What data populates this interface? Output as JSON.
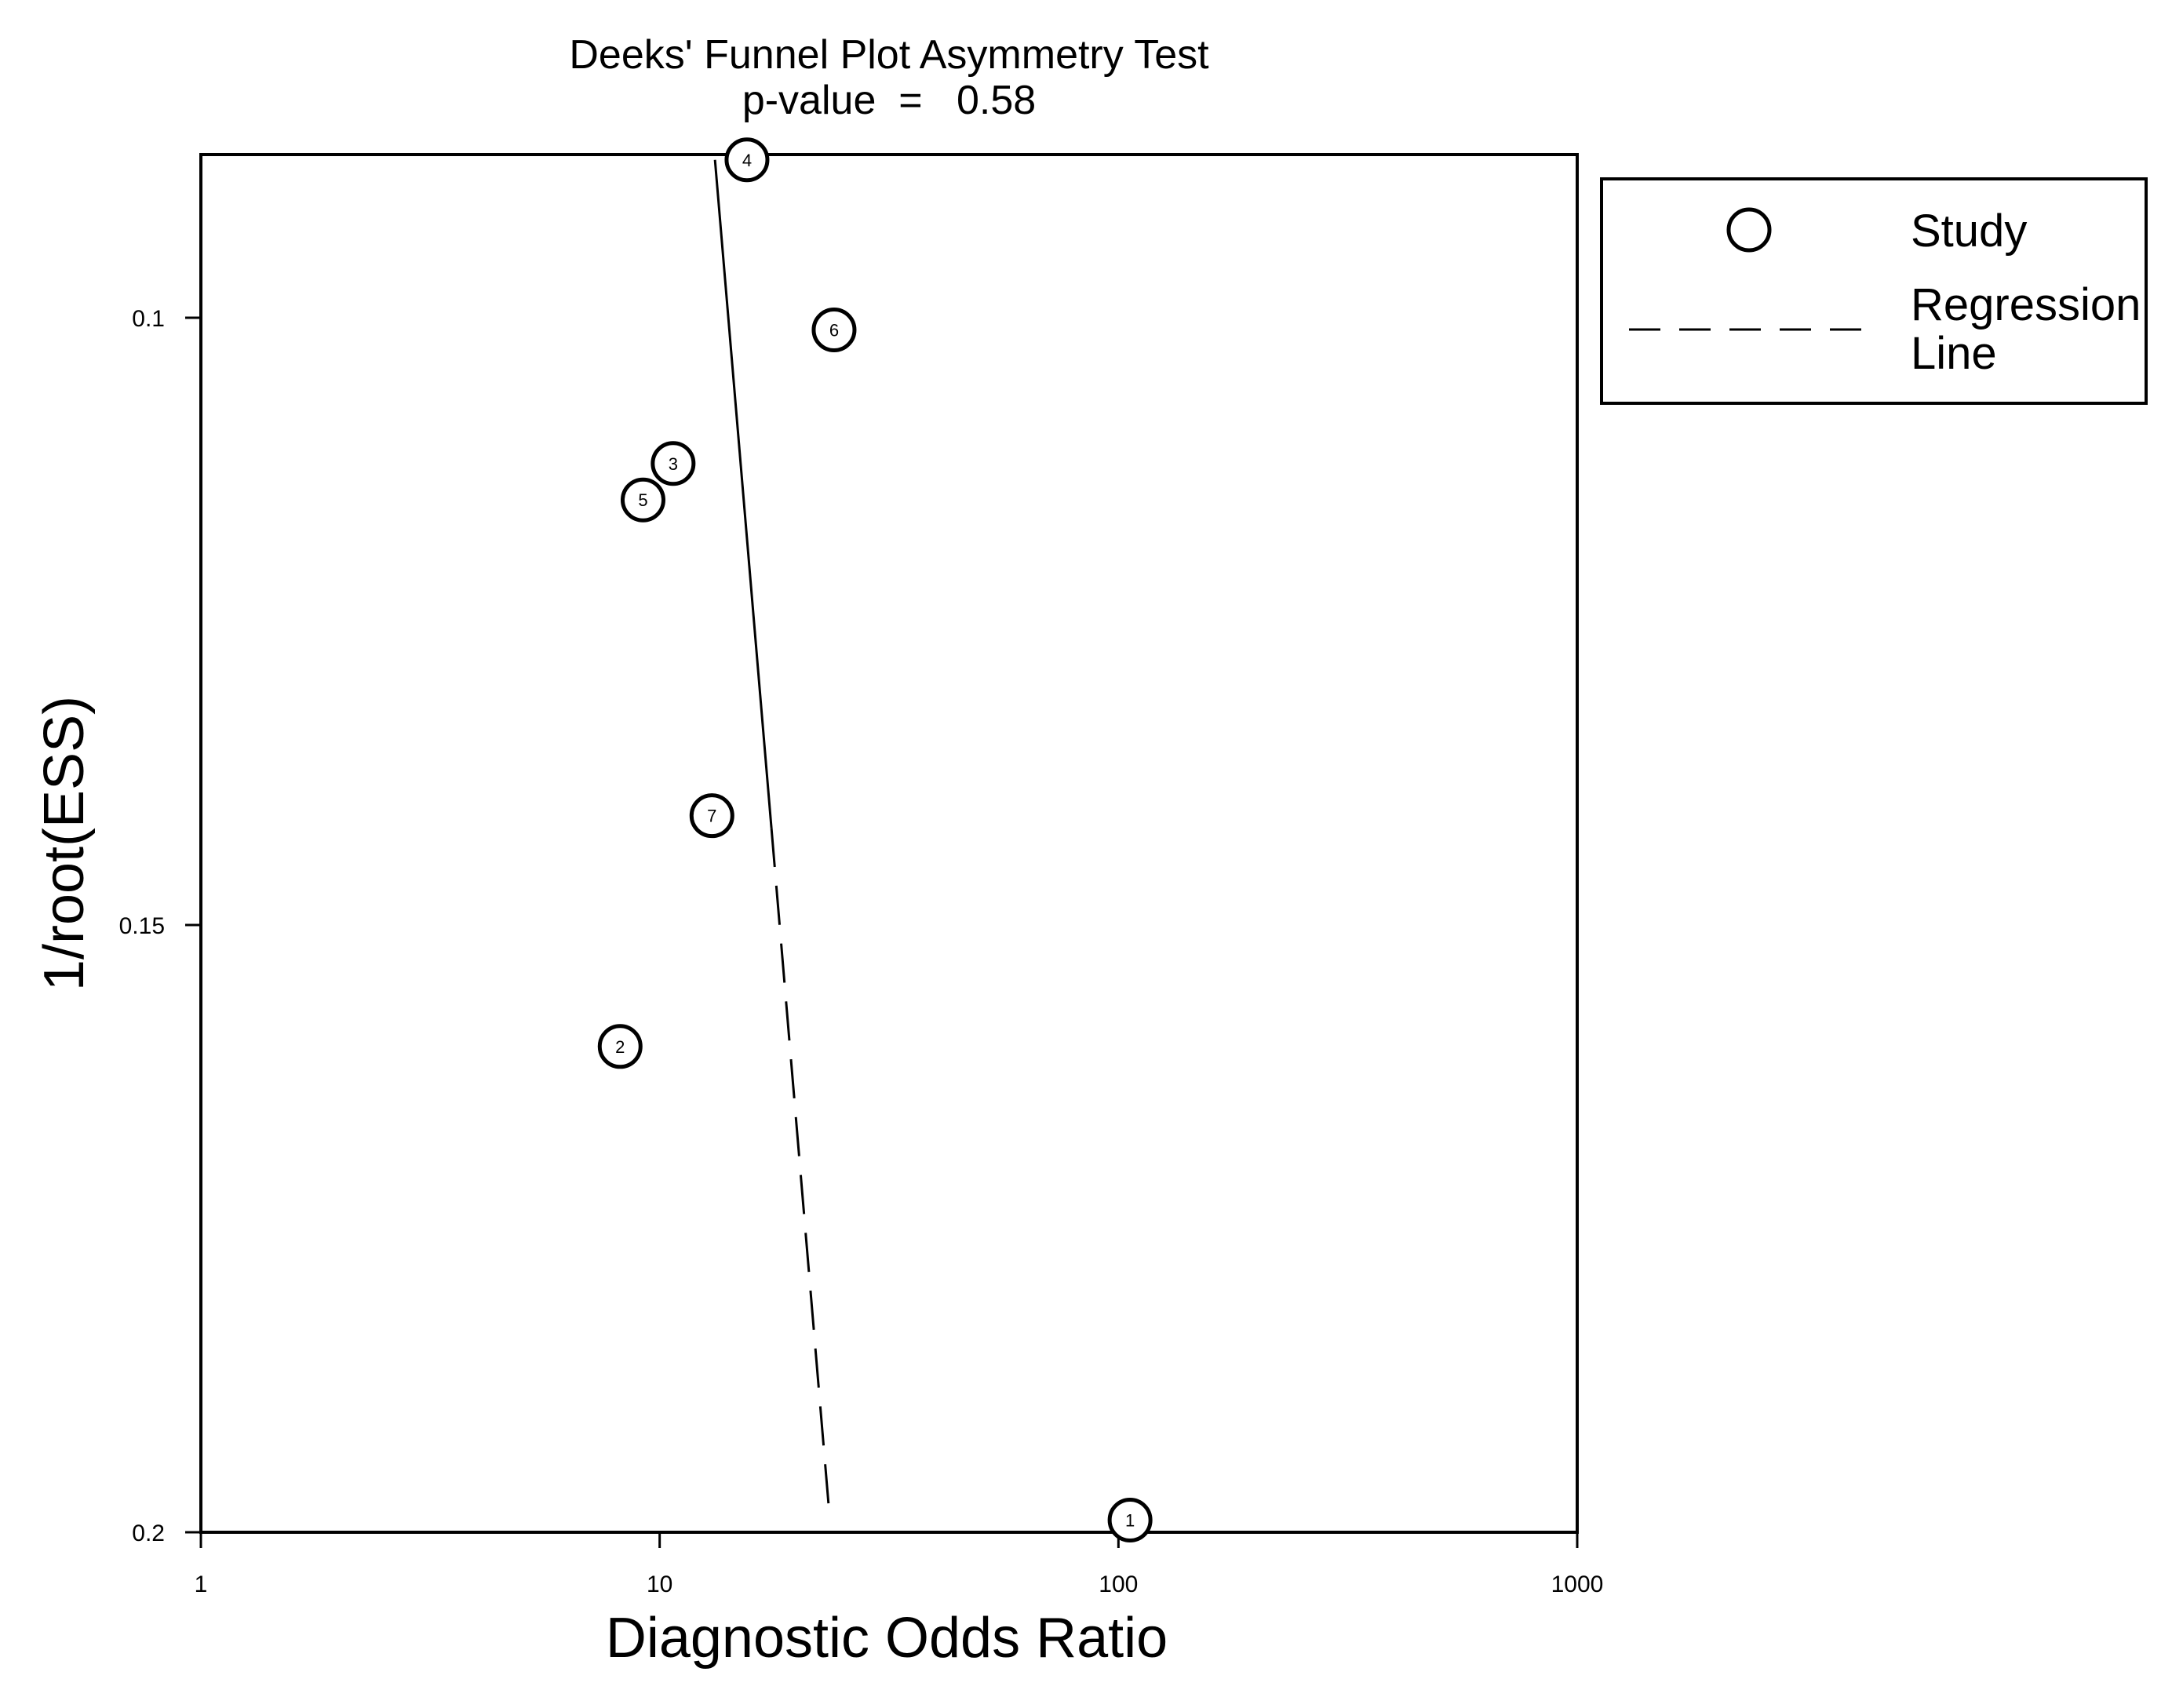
{
  "chart_data": {
    "type": "scatter",
    "title": "Deeks' Funnel Plot Asymmetry Test",
    "subtitle": "p-value  =   0.58",
    "xlabel": "Diagnostic Odds Ratio",
    "ylabel": "1/root(ESS)",
    "x_scale": "log",
    "xlim": [
      1,
      1000
    ],
    "ylim": [
      0.2,
      0.087
    ],
    "y_reversed": true,
    "x_ticks": [
      "1",
      "10",
      "100",
      "1000"
    ],
    "x_tick_values": [
      1,
      10,
      100,
      1000
    ],
    "y_ticks": [
      "0.1",
      "0.15",
      "0.2"
    ],
    "y_tick_values": [
      0.1,
      0.15,
      0.2
    ],
    "series": [
      {
        "name": "Study",
        "points": [
          {
            "label": "1",
            "x": 106,
            "y": 0.199
          },
          {
            "label": "2",
            "x": 8.2,
            "y": 0.16
          },
          {
            "label": "3",
            "x": 10.7,
            "y": 0.112
          },
          {
            "label": "4",
            "x": 15.5,
            "y": 0.087
          },
          {
            "label": "5",
            "x": 9.2,
            "y": 0.115
          },
          {
            "label": "6",
            "x": 24,
            "y": 0.101
          },
          {
            "label": "7",
            "x": 13,
            "y": 0.141
          }
        ]
      },
      {
        "name": "Regression Line",
        "line": [
          {
            "x": 13.2,
            "y": 0.087
          },
          {
            "x": 23.5,
            "y": 0.199
          }
        ],
        "solid_until_y": 0.142
      }
    ],
    "legend": {
      "position": "right",
      "entries": [
        "Study",
        "Regression\nLine"
      ],
      "entry_lines": [
        [
          "Study"
        ],
        [
          "Regression",
          "Line"
        ]
      ]
    },
    "grid": false,
    "colors": {
      "ink": "#000000",
      "background": "#ffffff"
    }
  }
}
